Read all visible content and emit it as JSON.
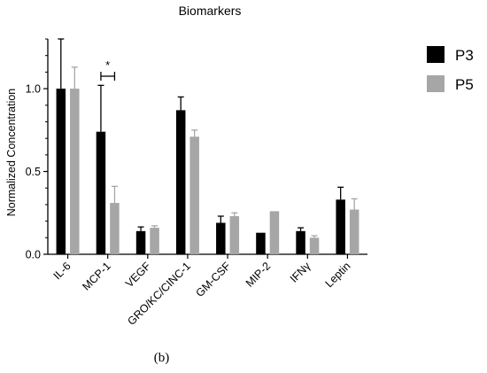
{
  "chart_data": {
    "type": "bar",
    "title": "Biomarkers",
    "xlabel": "",
    "ylabel": "Normalized Concentration",
    "categories": [
      "IL-6",
      "MCP-1",
      "VEGF",
      "GRO/KC/CINC-1",
      "GM-CSF",
      "MIP-2",
      "IFNγ",
      "Leptin"
    ],
    "series": [
      {
        "name": "P3",
        "color": "#000000",
        "values": [
          1.0,
          0.74,
          0.14,
          0.87,
          0.19,
          0.13,
          0.14,
          0.33
        ],
        "errors": [
          0.3,
          0.28,
          0.025,
          0.08,
          0.04,
          null,
          0.02,
          0.075
        ]
      },
      {
        "name": "P5",
        "color": "#a6a6a6",
        "values": [
          1.0,
          0.31,
          0.16,
          0.71,
          0.23,
          0.26,
          0.1,
          0.27
        ],
        "errors": [
          0.13,
          0.1,
          0.012,
          0.04,
          0.02,
          null,
          0.012,
          0.065
        ]
      }
    ],
    "ylim": [
      0,
      1.3
    ],
    "yticks": [
      "0.0",
      "0.5",
      "1.0"
    ],
    "legend_position": "top-right",
    "annotations": [
      {
        "text": "*",
        "category": "MCP-1"
      }
    ]
  },
  "figure": {
    "panel_label": "(b)"
  }
}
